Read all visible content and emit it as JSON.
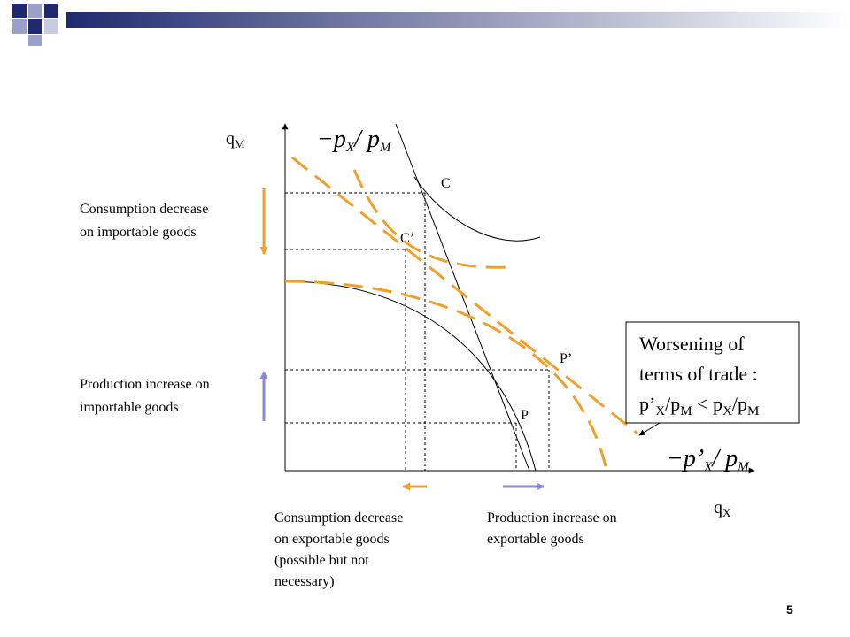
{
  "slide_number": "5",
  "axes": {
    "y_label": {
      "base": "q",
      "sub": "M"
    },
    "x_label": {
      "base": "q",
      "sub": "X"
    }
  },
  "slope_labels": {
    "initial": {
      "p1": "−p",
      "s1": "X",
      "p2": "/ p",
      "s2": "M"
    },
    "new": {
      "p1": "−p’",
      "s1": "X",
      "p2": "/ p",
      "s2": "M"
    }
  },
  "point_labels": [
    "C",
    "C’",
    "P’",
    "P"
  ],
  "annotations": {
    "consumption_importable": [
      "Consumption decrease",
      "on importable goods"
    ],
    "production_importable": [
      "Production increase on",
      "importable goods"
    ],
    "consumption_exportable": [
      "Consumption decrease",
      "on exportable goods",
      "(possible but not",
      "necessary)"
    ],
    "production_exportable": [
      "Production increase on",
      "exportable goods"
    ]
  },
  "callout": {
    "lines": [
      "Worsening of",
      "terms of trade :"
    ],
    "formula": {
      "p1": "p’",
      "s1": "X",
      "p2": "/p",
      "s2": "M",
      "p3": " < p",
      "s3": "X",
      "p4": "/p",
      "s4": "M"
    }
  }
}
